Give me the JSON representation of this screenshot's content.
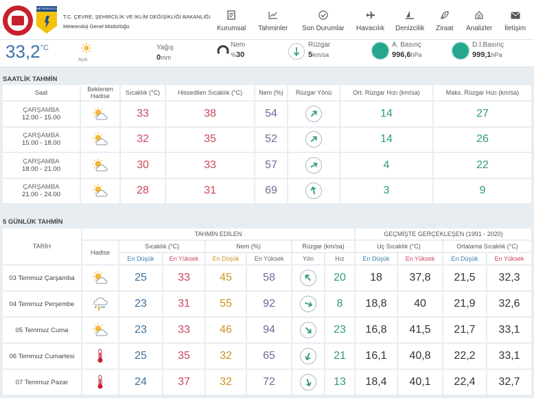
{
  "header": {
    "org_line1": "T.C. ÇEVRE, ŞEHİRCİLİK VE İKLİM DEĞİŞİKLİĞİ BAKANLIĞI",
    "org_line2": "Meteoroloji Genel Müdürlüğü",
    "logo_text": "METEOROLOJİ",
    "nav": [
      {
        "label": "Kurumsal",
        "icon": "document-icon"
      },
      {
        "label": "Tahminler",
        "icon": "chart-icon"
      },
      {
        "label": "Son Durumlar",
        "icon": "check-circle-icon"
      },
      {
        "label": "Havacılık",
        "icon": "plane-icon"
      },
      {
        "label": "Denizcilik",
        "icon": "sail-icon"
      },
      {
        "label": "Ziraat",
        "icon": "leaf-icon"
      },
      {
        "label": "Analizler",
        "icon": "house-search-icon"
      },
      {
        "label": "İletişim",
        "icon": "mail-icon"
      }
    ]
  },
  "current": {
    "temp": "33,2",
    "temp_unit": "°C",
    "condition": "Açık",
    "rain_label": "Yağış",
    "rain_value": "0",
    "rain_unit": "mm",
    "humidity_label": "Nem",
    "humidity_prefix": "%",
    "humidity_value": "30",
    "wind_label": "Rüzgar",
    "wind_value": "5",
    "wind_unit": "km/sa",
    "pressure_label": "A. Basınç",
    "pressure_value": "996,6",
    "pressure_unit": "hPa",
    "sea_pressure_label": "D.İ.Basınç",
    "sea_pressure_value": "999,1",
    "sea_pressure_unit": "hPa"
  },
  "hourly": {
    "title": "SAATLİK TAHMİN",
    "headers": {
      "saat": "Saat",
      "hadise": "Beklenen Hadise",
      "sicaklik": "Sıcaklık (°C)",
      "hissedilen": "Hissedilen Sıcaklık (°C)",
      "nem": "Nem (%)",
      "yon": "Rüzgar Yönü",
      "ort": "Ort. Rüzgar Hızı (km/sa)",
      "maks": "Maks. Rüzgar Hızı (km/sa)"
    },
    "rows": [
      {
        "day": "ÇARŞAMBA",
        "time": "12.00 - 15.00",
        "icon": "partly-cloudy-icon",
        "temp": "33",
        "feels": "38",
        "hum": "54",
        "dir_deg": 45,
        "avg": "14",
        "max": "27"
      },
      {
        "day": "ÇARŞAMBA",
        "time": "15.00 - 18.00",
        "icon": "partly-cloudy-icon",
        "temp": "32",
        "feels": "35",
        "hum": "52",
        "dir_deg": 50,
        "avg": "14",
        "max": "26"
      },
      {
        "day": "ÇARŞAMBA",
        "time": "18.00 - 21.00",
        "icon": "partly-cloudy-icon",
        "temp": "30",
        "feels": "33",
        "hum": "57",
        "dir_deg": 60,
        "avg": "4",
        "max": "22"
      },
      {
        "day": "ÇARŞAMBA",
        "time": "21.00 - 24.00",
        "icon": "partly-cloudy-icon",
        "temp": "28",
        "feels": "31",
        "hum": "69",
        "dir_deg": -15,
        "avg": "3",
        "max": "9"
      }
    ]
  },
  "daily": {
    "title": "5 GÜNLÜK TAHMİN",
    "group_forecast": "TAHMİN EDİLEN",
    "group_history": "GEÇMİŞTE GERÇEKLEŞEN (1991 - 2020)",
    "h_tarih": "TARİH",
    "h_hadise": "Hadise",
    "h_sicaklik": "Sıcaklık (°C)",
    "h_nem": "Nem (%)",
    "h_ruzgar": "Rüzgar (km/sa)",
    "h_uc": "Uç Sıcaklık (°C)",
    "h_ort": "Ortalama Sıcaklık (°C)",
    "h_en_dusuk": "En Düşük",
    "h_en_yuksek": "En Yüksek",
    "h_yon": "Yön",
    "h_hiz": "Hız",
    "rows": [
      {
        "date": "03 Temmuz Çarşamba",
        "icon": "partly-cloudy-icon",
        "tmin": "25",
        "tmax": "33",
        "hmin": "45",
        "hmax": "58",
        "dir_deg": -40,
        "speed": "20",
        "umin": "18",
        "umax": "37,8",
        "omin": "21,5",
        "omax": "32,3"
      },
      {
        "date": "04 Temmuz Perşembe",
        "icon": "storm-icon",
        "tmin": "23",
        "tmax": "31",
        "hmin": "55",
        "hmax": "92",
        "dir_deg": 110,
        "speed": "8",
        "umin": "18,8",
        "umax": "40",
        "omin": "21,9",
        "omax": "32,6"
      },
      {
        "date": "05 Temmuz Cuma",
        "icon": "partly-cloudy-icon",
        "tmin": "23",
        "tmax": "33",
        "hmin": "46",
        "hmax": "94",
        "dir_deg": 135,
        "speed": "23",
        "umin": "16,8",
        "umax": "41,5",
        "omin": "21,7",
        "omax": "33,1"
      },
      {
        "date": "06 Temmuz Cumartesi",
        "icon": "thermometer-icon",
        "tmin": "25",
        "tmax": "35",
        "hmin": "32",
        "hmax": "65",
        "dir_deg": 200,
        "speed": "21",
        "umin": "16,1",
        "umax": "40,8",
        "omin": "22,2",
        "omax": "33,1"
      },
      {
        "date": "07 Temmuz Pazar",
        "icon": "thermometer-icon",
        "tmin": "24",
        "tmax": "37",
        "hmin": "32",
        "hmax": "72",
        "dir_deg": 160,
        "speed": "13",
        "umin": "18,4",
        "umax": "40,1",
        "omin": "22,4",
        "omax": "32,7"
      }
    ]
  }
}
